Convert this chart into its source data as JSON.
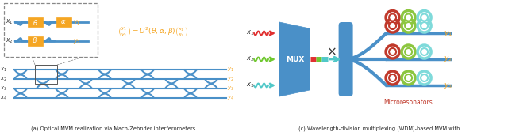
{
  "fig_width": 6.4,
  "fig_height": 1.67,
  "dpi": 100,
  "blue": "#4a90c8",
  "orange": "#f5a623",
  "red": "#e03030",
  "green_inp": "#70c830",
  "cyan_inp": "#50c8c8",
  "dark_red": "#c0392b",
  "lime": "#8cc63f",
  "teal": "#7fdada",
  "caption_left": "(a) Optical MVM realization via Mach-Zehnder interferometers",
  "caption_right": "(c) Wavelength-division multiplexing (WDM)-based MVM with",
  "caption_right2": "Microresonators"
}
